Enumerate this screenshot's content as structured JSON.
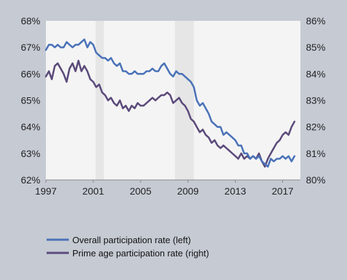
{
  "chart_data": {
    "type": "line",
    "title": "",
    "xlabel": "",
    "ylabel": "",
    "x_ticks": [
      "1997",
      "2001",
      "2005",
      "2009",
      "2013",
      "2017"
    ],
    "xlim": [
      1997,
      2018.5
    ],
    "ylim_left": [
      62,
      68
    ],
    "ylim_right": [
      80,
      86
    ],
    "left_ticks": [
      "62%",
      "63%",
      "64%",
      "65%",
      "66%",
      "67%",
      "68%"
    ],
    "right_ticks": [
      "80%",
      "81%",
      "82%",
      "83%",
      "84%",
      "85%",
      "86%"
    ],
    "recession_shading": [
      [
        2001.2,
        2001.9
      ],
      [
        2007.9,
        2009.5
      ]
    ],
    "grid": false,
    "legend_position": "bottom-left",
    "colors": {
      "overall": "#4a72b8",
      "prime": "#5b4a7a",
      "plot_bg": "#f4f4f4",
      "recession": "#e6e6e6",
      "page_bg": "#c5cad3"
    },
    "series": [
      {
        "name": "Overall participation rate (left)",
        "axis": "left",
        "x": [
          1997.0,
          1997.25,
          1997.5,
          1997.75,
          1998.0,
          1998.25,
          1998.5,
          1998.75,
          1999.0,
          1999.25,
          1999.5,
          1999.75,
          2000.0,
          2000.25,
          2000.5,
          2000.75,
          2001.0,
          2001.25,
          2001.5,
          2001.75,
          2002.0,
          2002.25,
          2002.5,
          2002.75,
          2003.0,
          2003.25,
          2003.5,
          2003.75,
          2004.0,
          2004.25,
          2004.5,
          2004.75,
          2005.0,
          2005.25,
          2005.5,
          2005.75,
          2006.0,
          2006.25,
          2006.5,
          2006.75,
          2007.0,
          2007.25,
          2007.5,
          2007.75,
          2008.0,
          2008.25,
          2008.5,
          2008.75,
          2009.0,
          2009.25,
          2009.5,
          2009.75,
          2010.0,
          2010.25,
          2010.5,
          2010.75,
          2011.0,
          2011.25,
          2011.5,
          2011.75,
          2012.0,
          2012.25,
          2012.5,
          2012.75,
          2013.0,
          2013.25,
          2013.5,
          2013.75,
          2014.0,
          2014.25,
          2014.5,
          2014.75,
          2015.0,
          2015.25,
          2015.5,
          2015.75,
          2016.0,
          2016.25,
          2016.5,
          2016.75,
          2017.0,
          2017.25,
          2017.5,
          2017.75,
          2018.0
        ],
        "values": [
          66.9,
          67.1,
          67.1,
          67.0,
          67.1,
          67.0,
          67.0,
          67.2,
          67.1,
          67.0,
          67.1,
          67.1,
          67.2,
          67.3,
          67.0,
          67.2,
          67.1,
          66.8,
          66.7,
          66.6,
          66.6,
          66.5,
          66.6,
          66.4,
          66.3,
          66.4,
          66.1,
          66.1,
          66.0,
          66.0,
          66.1,
          66.0,
          66.0,
          66.0,
          66.1,
          66.1,
          66.2,
          66.1,
          66.1,
          66.3,
          66.4,
          66.2,
          66.0,
          65.9,
          66.1,
          66.0,
          66.0,
          65.9,
          65.8,
          65.7,
          65.5,
          65.0,
          64.8,
          64.9,
          64.7,
          64.5,
          64.2,
          64.1,
          64.0,
          64.0,
          63.7,
          63.8,
          63.7,
          63.6,
          63.5,
          63.3,
          63.3,
          63.0,
          63.0,
          62.8,
          62.9,
          62.8,
          62.9,
          62.7,
          62.6,
          62.5,
          62.8,
          62.7,
          62.8,
          62.8,
          62.9,
          62.8,
          62.9,
          62.7,
          62.9
        ]
      },
      {
        "name": "Prime age participation rate (right)",
        "axis": "right",
        "x": [
          1997.0,
          1997.25,
          1997.5,
          1997.75,
          1998.0,
          1998.25,
          1998.5,
          1998.75,
          1999.0,
          1999.25,
          1999.5,
          1999.75,
          2000.0,
          2000.25,
          2000.5,
          2000.75,
          2001.0,
          2001.25,
          2001.5,
          2001.75,
          2002.0,
          2002.25,
          2002.5,
          2002.75,
          2003.0,
          2003.25,
          2003.5,
          2003.75,
          2004.0,
          2004.25,
          2004.5,
          2004.75,
          2005.0,
          2005.25,
          2005.5,
          2005.75,
          2006.0,
          2006.25,
          2006.5,
          2006.75,
          2007.0,
          2007.25,
          2007.5,
          2007.75,
          2008.0,
          2008.25,
          2008.5,
          2008.75,
          2009.0,
          2009.25,
          2009.5,
          2009.75,
          2010.0,
          2010.25,
          2010.5,
          2010.75,
          2011.0,
          2011.25,
          2011.5,
          2011.75,
          2012.0,
          2012.25,
          2012.5,
          2012.75,
          2013.0,
          2013.25,
          2013.5,
          2013.75,
          2014.0,
          2014.25,
          2014.5,
          2014.75,
          2015.0,
          2015.25,
          2015.5,
          2015.75,
          2016.0,
          2016.25,
          2016.5,
          2016.75,
          2017.0,
          2017.25,
          2017.5,
          2017.75,
          2018.0
        ],
        "values": [
          83.9,
          84.1,
          83.8,
          84.3,
          84.4,
          84.2,
          84.0,
          83.7,
          84.2,
          84.4,
          84.1,
          84.5,
          84.1,
          84.3,
          84.1,
          83.8,
          83.7,
          83.5,
          83.6,
          83.3,
          83.2,
          83.0,
          83.1,
          82.9,
          82.8,
          83.0,
          82.7,
          82.8,
          82.6,
          82.8,
          82.7,
          82.9,
          82.8,
          82.8,
          82.9,
          83.0,
          83.1,
          83.0,
          83.1,
          83.2,
          83.2,
          83.3,
          83.2,
          82.9,
          83.0,
          83.1,
          82.9,
          82.8,
          82.6,
          82.3,
          82.2,
          82.0,
          81.8,
          81.9,
          81.7,
          81.6,
          81.4,
          81.5,
          81.3,
          81.2,
          81.3,
          81.2,
          81.1,
          81.0,
          80.9,
          80.8,
          81.0,
          80.8,
          80.9,
          80.8,
          80.9,
          80.8,
          81.0,
          80.7,
          80.5,
          80.8,
          81.0,
          81.2,
          81.4,
          81.5,
          81.7,
          81.8,
          81.7,
          82.0,
          82.2
        ]
      }
    ]
  }
}
